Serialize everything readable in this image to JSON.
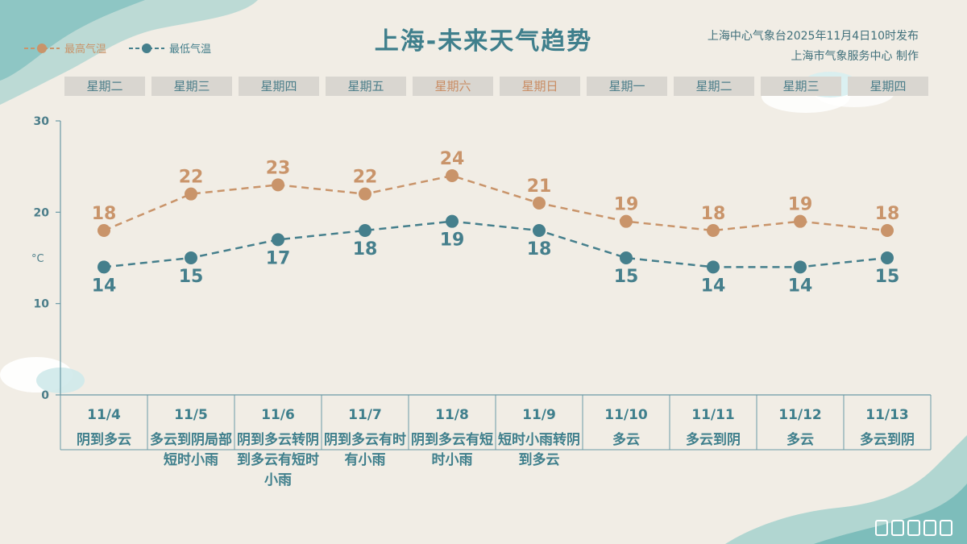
{
  "header": {
    "title": "上海-未来天气趋势",
    "publisher_line1": "上海中心气象台2025年11月4日10时发布",
    "publisher_line2": "上海市气象服务中心  制作"
  },
  "colors": {
    "high": "#c9946a",
    "low": "#457f8c",
    "axis": "#6b9aa6"
  },
  "chart_data": {
    "type": "line",
    "categories": [
      "11/4",
      "11/5",
      "11/6",
      "11/7",
      "11/8",
      "11/9",
      "11/10",
      "11/11",
      "11/12",
      "11/13"
    ],
    "weekdays": [
      "星期二",
      "星期三",
      "星期四",
      "星期五",
      "星期六",
      "星期日",
      "星期一",
      "星期二",
      "星期三",
      "星期四"
    ],
    "weekend": [
      false,
      false,
      false,
      false,
      true,
      true,
      false,
      false,
      false,
      false
    ],
    "weather": [
      "阴到多云",
      "多云到阴局部短时小雨",
      "阴到多云转阴到多云有短时小雨",
      "阴到多云有时有小雨",
      "阴到多云有短时小雨",
      "短时小雨转阴到多云",
      "多云",
      "多云到阴",
      "多云",
      "多云到阴"
    ],
    "series": [
      {
        "name": "最高气温",
        "values": [
          18,
          22,
          23,
          22,
          24,
          21,
          19,
          18,
          19,
          18
        ]
      },
      {
        "name": "最低气温",
        "values": [
          14,
          15,
          17,
          18,
          19,
          18,
          15,
          14,
          14,
          15
        ]
      }
    ],
    "yunit": "°C",
    "yticks": [
      0,
      10,
      20,
      30
    ],
    "ylim": [
      0,
      30
    ],
    "grid": false,
    "legend_position": "top-left"
  }
}
